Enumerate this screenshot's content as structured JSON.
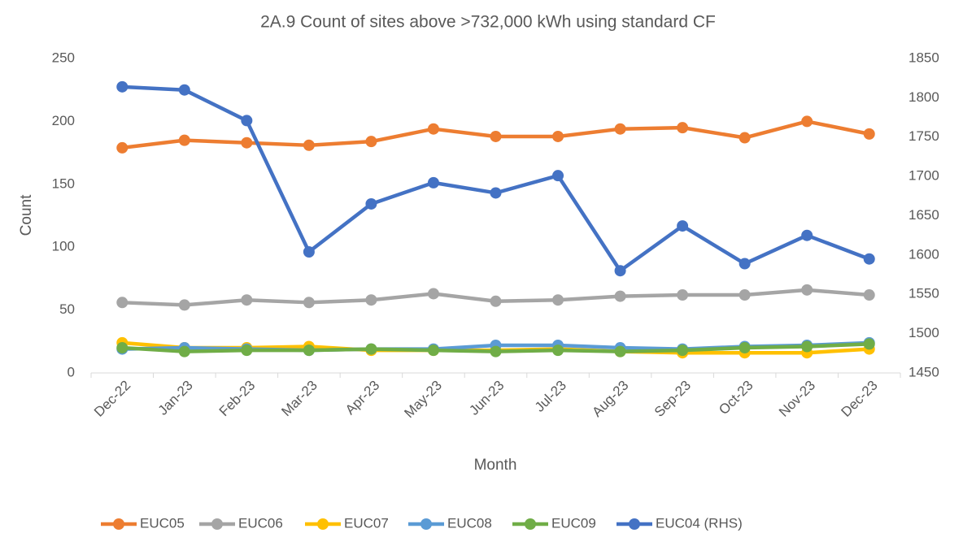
{
  "chart_data": {
    "type": "line",
    "title": "2A.9 Count of sites above >732,000 kWh using standard CF",
    "x_label": "Month",
    "y_label": "Count",
    "categories": [
      "Dec-22",
      "Jan-23",
      "Feb-23",
      "Mar-23",
      "Apr-23",
      "May-23",
      "Jun-23",
      "Jul-23",
      "Aug-23",
      "Sep-23",
      "Oct-23",
      "Nov-23",
      "Dec-23"
    ],
    "ylim": [
      0,
      250
    ],
    "yticks": [
      0,
      50,
      100,
      150,
      200,
      250
    ],
    "y2lim": [
      1450,
      1850
    ],
    "y2ticks": [
      1450,
      1500,
      1550,
      1600,
      1650,
      1700,
      1750,
      1800,
      1850
    ],
    "legend": "bottom",
    "series": [
      {
        "name": "EUC05",
        "color": "#ed7d31",
        "values": [
          179,
          185,
          183,
          181,
          184,
          194,
          188,
          188,
          194,
          195,
          187,
          200,
          190
        ]
      },
      {
        "name": "EUC06",
        "color": "#a5a5a5",
        "values": [
          56,
          54,
          58,
          56,
          58,
          63,
          57,
          58,
          61,
          62,
          62,
          66,
          62
        ]
      },
      {
        "name": "EUC07",
        "color": "#ffc000",
        "values": [
          24,
          20,
          20,
          21,
          18,
          18,
          18,
          19,
          17,
          16,
          16,
          16,
          19
        ]
      },
      {
        "name": "EUC08",
        "color": "#5b9bd5",
        "values": [
          19,
          20,
          19,
          18,
          19,
          19,
          22,
          22,
          20,
          19,
          21,
          22,
          24
        ]
      },
      {
        "name": "EUC09",
        "color": "#70ad47",
        "values": [
          20,
          17,
          18,
          18,
          19,
          18,
          17,
          18,
          17,
          18,
          20,
          21,
          23
        ]
      },
      {
        "name": "EUC04 (RHS)",
        "color": "#4472c4",
        "axis": "y2",
        "values": [
          1814,
          1810,
          1771,
          1604,
          1665,
          1692,
          1679,
          1701,
          1580,
          1637,
          1589,
          1625,
          1595
        ]
      }
    ]
  }
}
